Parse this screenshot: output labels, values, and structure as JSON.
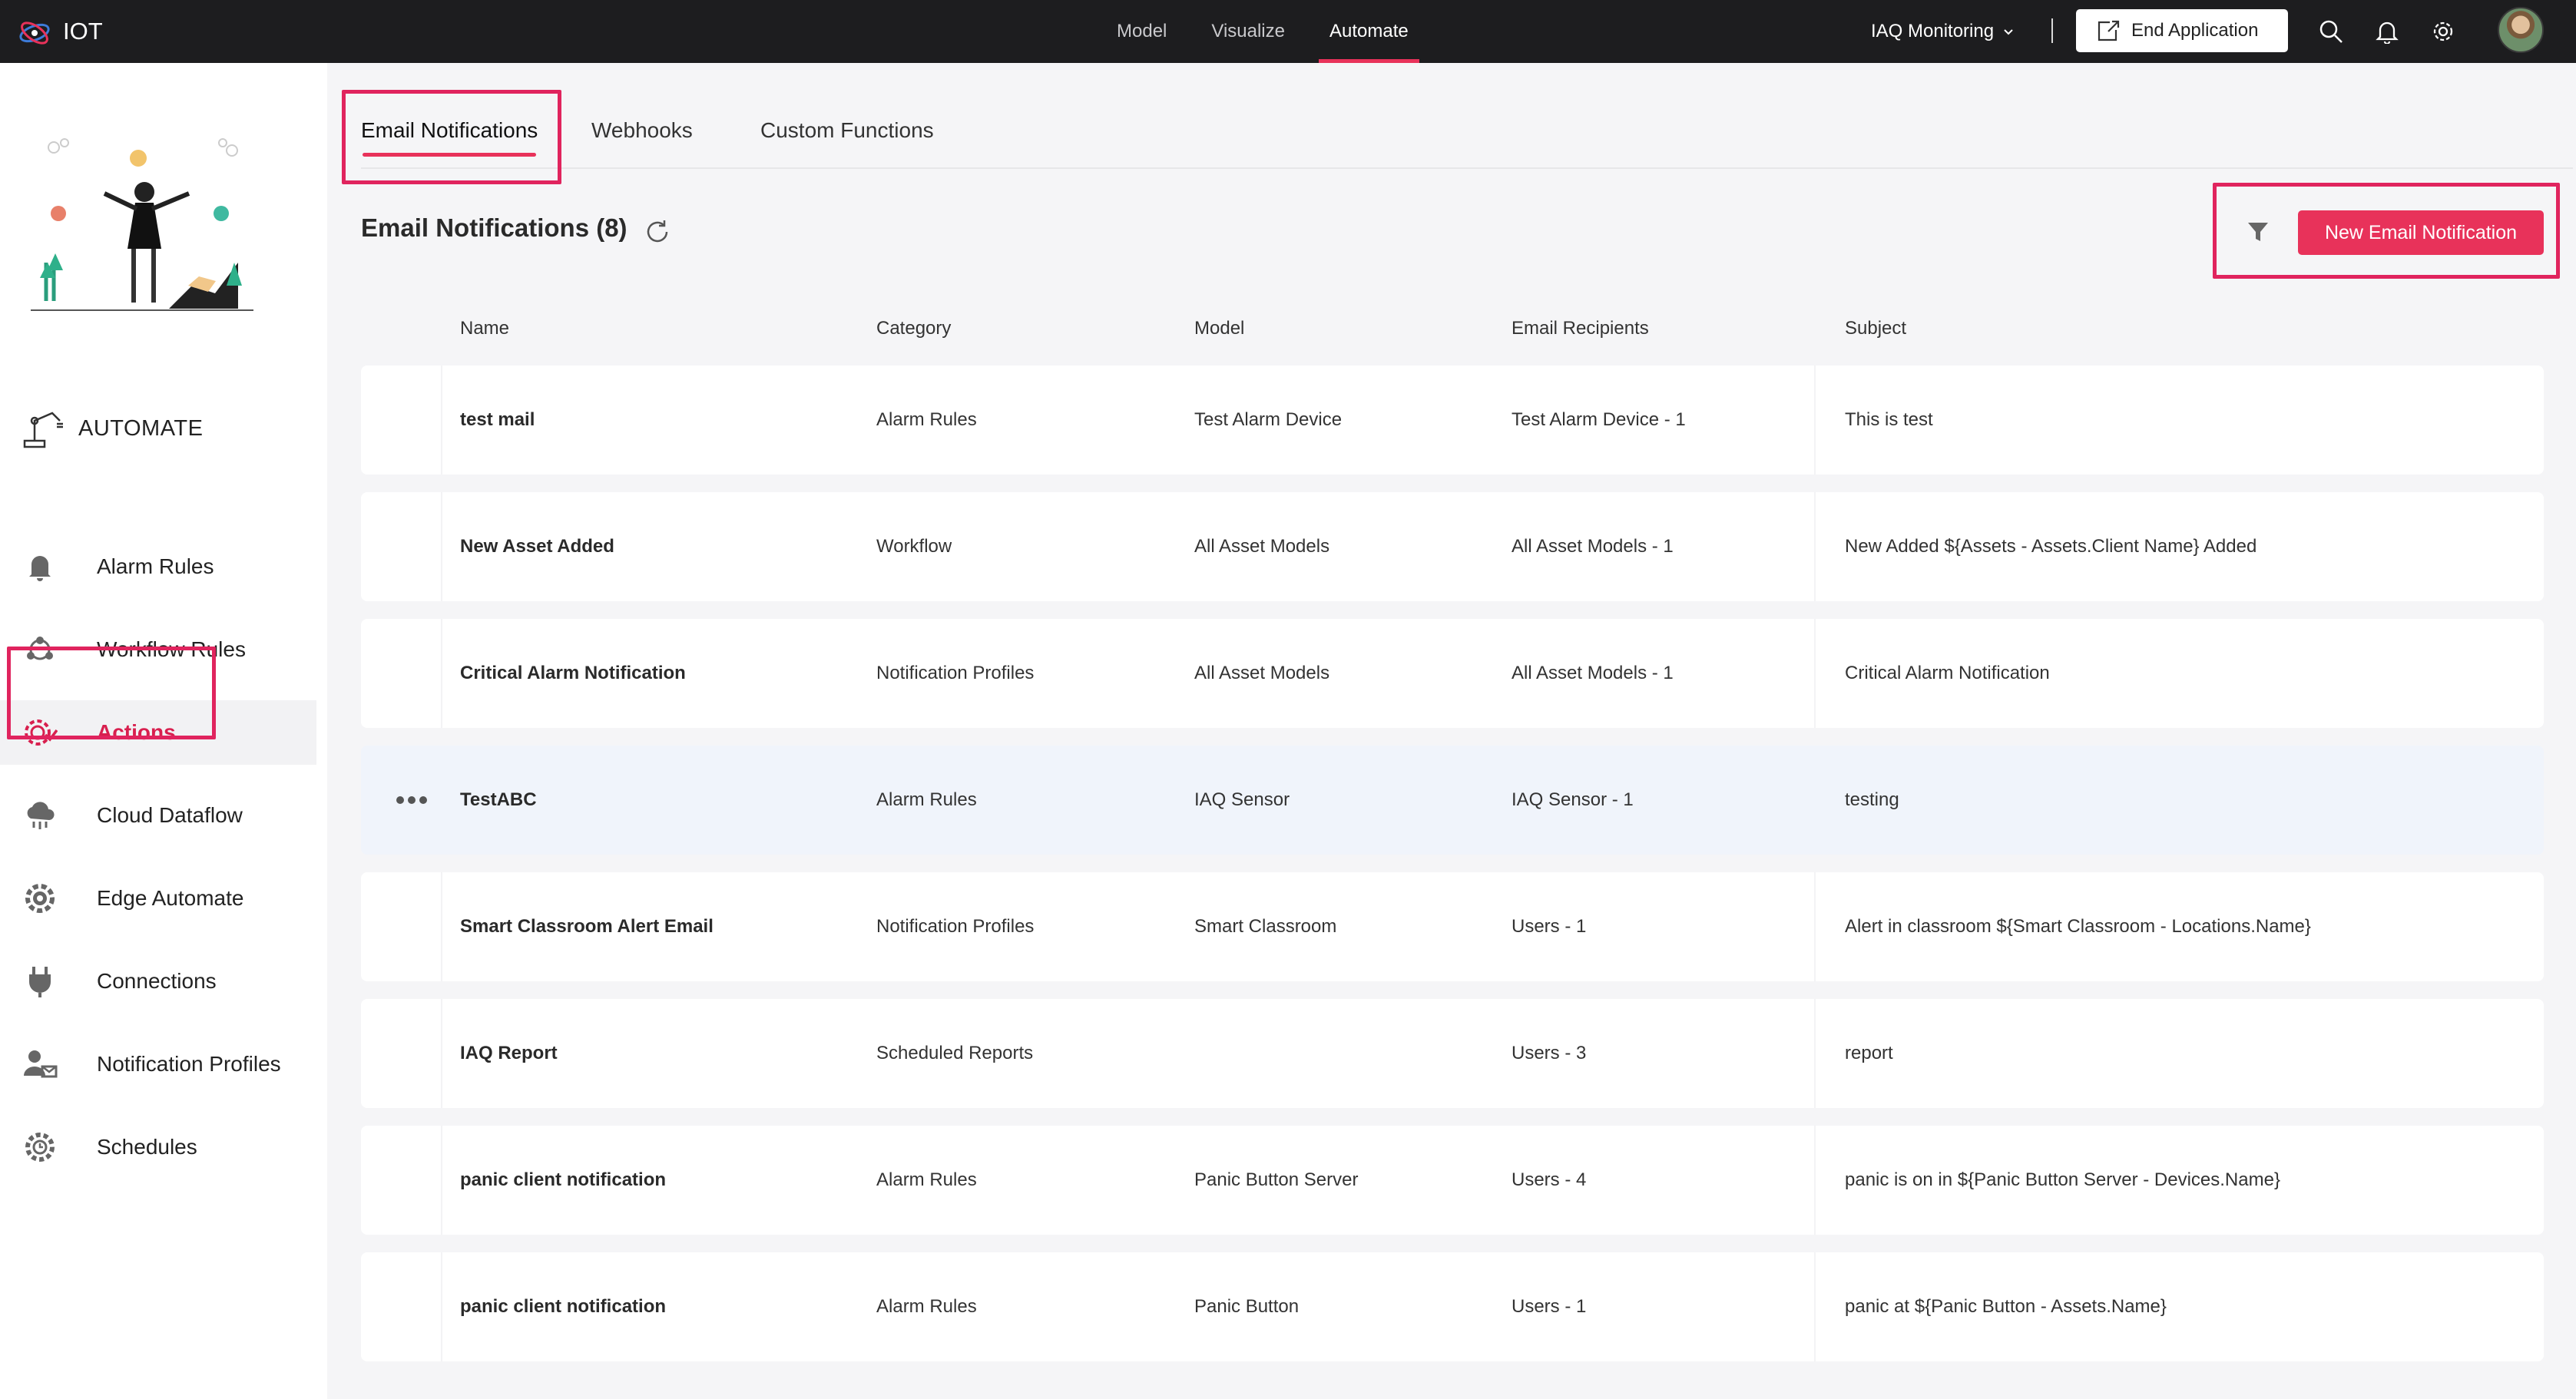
{
  "app": {
    "brand": "IOT"
  },
  "nav": {
    "items": [
      "Model",
      "Visualize",
      "Automate"
    ],
    "active": "Automate"
  },
  "header": {
    "application": "IAQ Monitoring",
    "end_application": "End Application"
  },
  "sidebar": {
    "section_title": "AUTOMATE",
    "items": [
      {
        "label": "Alarm Rules",
        "icon": "bell-icon"
      },
      {
        "label": "Workflow Rules",
        "icon": "workflow-icon"
      },
      {
        "label": "Actions",
        "icon": "actions-gear-icon",
        "active": true
      },
      {
        "label": "Cloud Dataflow",
        "icon": "cloud-dataflow-icon"
      },
      {
        "label": "Edge Automate",
        "icon": "edge-gear-icon"
      },
      {
        "label": "Connections",
        "icon": "plug-icon"
      },
      {
        "label": "Notification Profiles",
        "icon": "user-notification-icon"
      },
      {
        "label": "Schedules",
        "icon": "schedule-gear-icon"
      }
    ]
  },
  "tabs": [
    "Email Notifications",
    "Webhooks",
    "Custom Functions"
  ],
  "list": {
    "title": "Email Notifications (8)",
    "new_button": "New Email Notification",
    "columns": [
      "Name",
      "Category",
      "Model",
      "Email Recipients",
      "Subject"
    ],
    "rows": [
      {
        "name": "test mail",
        "category": "Alarm Rules",
        "model": "Test Alarm Device",
        "recipients": "Test Alarm Device - 1",
        "subject": "This is test"
      },
      {
        "name": "New Asset Added",
        "category": "Workflow",
        "model": "All Asset Models",
        "recipients": "All Asset Models - 1",
        "subject": "New Added ${Assets - Assets.Client Name} Added"
      },
      {
        "name": "Critical Alarm Notification",
        "category": "Notification Profiles",
        "model": "All Asset Models",
        "recipients": "All Asset Models - 1",
        "subject": "Critical Alarm Notification"
      },
      {
        "name": "TestABC",
        "category": "Alarm Rules",
        "model": "IAQ Sensor",
        "recipients": "IAQ Sensor - 1",
        "subject": "testing",
        "hovered": true
      },
      {
        "name": "Smart Classroom Alert Email",
        "category": "Notification Profiles",
        "model": "Smart Classroom",
        "recipients": "Users - 1",
        "subject": "Alert in classroom ${Smart Classroom - Locations.Name}"
      },
      {
        "name": "IAQ Report",
        "category": "Scheduled Reports",
        "model": "",
        "recipients": "Users - 3",
        "subject": "report"
      },
      {
        "name": "panic client notification",
        "category": "Alarm Rules",
        "model": "Panic Button Server",
        "recipients": "Users - 4",
        "subject": "panic is on in ${Panic Button Server - Devices.Name}"
      },
      {
        "name": "panic client notification",
        "category": "Alarm Rules",
        "model": "Panic Button",
        "recipients": "Users - 1",
        "subject": "panic at ${Panic Button - Assets.Name}"
      }
    ]
  },
  "colors": {
    "accent": "#e8325a",
    "topbar": "#1d1d1f",
    "highlight": "#e0245e"
  }
}
